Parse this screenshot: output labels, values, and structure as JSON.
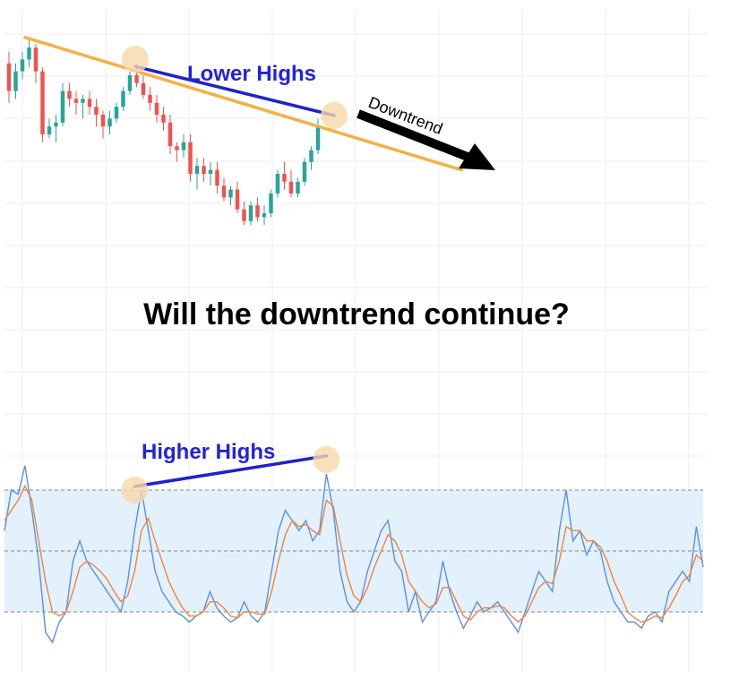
{
  "headline": "Will the downtrend continue?",
  "colors": {
    "up": "#26a69a",
    "down": "#ef5350",
    "trendline": "#f5b042",
    "highs_line": "#2020d0",
    "label": "#2222dd",
    "highlight": "#f6d9a8",
    "band_fill": "#e3f1fc",
    "k_line": "#5b8fe8",
    "d_line": "#f0843a",
    "arrow": "#000000",
    "grid": "#ececec"
  },
  "chart_data": [
    {
      "type": "candlestick",
      "title": "",
      "annotations": {
        "lower_highs": "Lower Highs",
        "downtrend": "Downtrend"
      },
      "candles": [
        [
          128,
          131,
          118,
          121
        ],
        [
          121,
          128,
          119,
          126
        ],
        [
          126,
          131,
          124,
          129
        ],
        [
          129,
          134,
          127,
          132
        ],
        [
          132,
          133,
          123,
          126
        ],
        [
          126,
          127,
          108,
          110
        ],
        [
          110,
          114,
          109,
          112
        ],
        [
          112,
          115,
          108,
          113
        ],
        [
          113,
          123,
          112,
          121
        ],
        [
          121,
          123,
          117,
          119
        ],
        [
          119,
          121,
          115,
          118
        ],
        [
          118,
          120,
          114,
          119
        ],
        [
          119,
          121,
          115,
          117
        ],
        [
          117,
          119,
          112,
          115
        ],
        [
          115,
          116,
          109,
          112
        ],
        [
          112,
          116,
          110,
          114
        ],
        [
          114,
          118,
          113,
          117
        ],
        [
          117,
          122,
          116,
          121
        ],
        [
          121,
          126,
          120,
          125
        ],
        [
          125,
          128,
          122,
          123
        ],
        [
          123,
          125,
          119,
          120
        ],
        [
          120,
          122,
          116,
          118
        ],
        [
          118,
          120,
          113,
          115
        ],
        [
          115,
          117,
          111,
          113
        ],
        [
          113,
          115,
          105,
          107
        ],
        [
          107,
          108,
          103,
          106
        ],
        [
          106,
          110,
          104,
          108
        ],
        [
          108,
          110,
          98,
          100
        ],
        [
          100,
          104,
          96,
          102
        ],
        [
          102,
          104,
          98,
          100
        ],
        [
          100,
          103,
          97,
          101
        ],
        [
          101,
          103,
          95,
          97
        ],
        [
          97,
          99,
          93,
          94
        ],
        [
          94,
          97,
          92,
          96
        ],
        [
          96,
          98,
          90,
          91
        ],
        [
          91,
          93,
          87,
          88
        ],
        [
          88,
          93,
          87,
          92
        ],
        [
          92,
          94,
          88,
          89
        ],
        [
          89,
          92,
          87,
          90
        ],
        [
          90,
          96,
          89,
          95
        ],
        [
          95,
          101,
          94,
          100
        ],
        [
          100,
          103,
          96,
          98
        ],
        [
          98,
          101,
          94,
          95
        ],
        [
          95,
          99,
          94,
          98
        ],
        [
          98,
          104,
          97,
          103
        ],
        [
          103,
          107,
          101,
          106
        ],
        [
          106,
          114,
          105,
          112
        ]
      ],
      "trendline_points": [
        [
          0,
          134.6
        ],
        [
          68,
          101
        ]
      ],
      "lower_highs_points": [
        [
          18,
          128.6
        ],
        [
          50,
          114.8
        ]
      ]
    },
    {
      "type": "line",
      "title": "",
      "annotations": {
        "higher_highs": "Higher Highs"
      },
      "levels": [
        80,
        50,
        20
      ],
      "band": [
        20,
        80
      ],
      "ylim": [
        0,
        100
      ],
      "series": [
        {
          "values": [
            60,
            80,
            78,
            92,
            70,
            45,
            10,
            5,
            15,
            20,
            45,
            55,
            45,
            40,
            35,
            30,
            25,
            20,
            35,
            60,
            80,
            60,
            40,
            30,
            25,
            20,
            18,
            15,
            18,
            20,
            30,
            22,
            18,
            15,
            17,
            25,
            18,
            15,
            20,
            40,
            60,
            70,
            65,
            60,
            65,
            55,
            60,
            88,
            70,
            40,
            25,
            20,
            25,
            40,
            50,
            60,
            65,
            45,
            40,
            20,
            30,
            15,
            20,
            25,
            45,
            30,
            20,
            12,
            18,
            25,
            20,
            22,
            25,
            20,
            15,
            10,
            20,
            30,
            40,
            35,
            30,
            60,
            80,
            55,
            60,
            48,
            55,
            50,
            35,
            25,
            20,
            15,
            15,
            12,
            18,
            20,
            15,
            30,
            35,
            40,
            35,
            62,
            42
          ]
        },
        {
          "values": [
            65,
            70,
            75,
            82,
            75,
            55,
            35,
            20,
            18,
            20,
            30,
            42,
            45,
            43,
            40,
            36,
            30,
            25,
            28,
            40,
            60,
            66,
            55,
            45,
            35,
            28,
            22,
            18,
            18,
            20,
            25,
            25,
            22,
            18,
            17,
            20,
            20,
            19,
            19,
            30,
            45,
            58,
            65,
            62,
            63,
            60,
            58,
            75,
            72,
            55,
            38,
            28,
            25,
            32,
            42,
            50,
            58,
            55,
            48,
            35,
            30,
            25,
            22,
            24,
            32,
            32,
            25,
            18,
            16,
            20,
            22,
            22,
            23,
            22,
            18,
            15,
            18,
            25,
            32,
            35,
            34,
            45,
            62,
            60,
            60,
            55,
            55,
            52,
            45,
            35,
            28,
            20,
            17,
            15,
            16,
            18,
            17,
            22,
            28,
            35,
            38,
            48,
            45
          ]
        }
      ],
      "higher_highs_points": [
        [
          19,
          80
        ],
        [
          47,
          88
        ]
      ]
    }
  ]
}
